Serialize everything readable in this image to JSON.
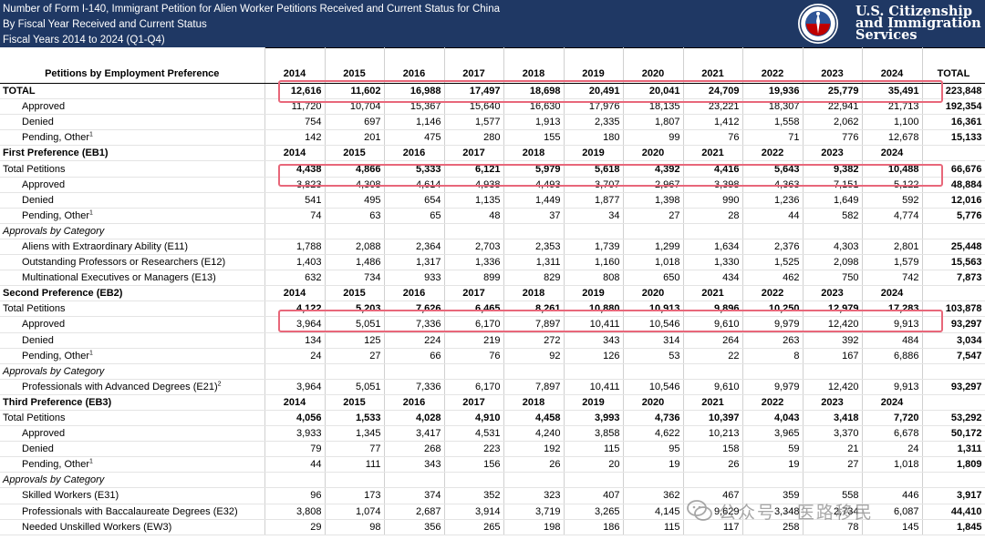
{
  "header": {
    "line1": "Number of Form I-140, Immigrant Petition for Alien Worker Petitions Received and Current Status for China",
    "line2": "By Fiscal Year Received and Current Status",
    "line3": "Fiscal Years 2014 to 2024 (Q1-Q4)",
    "agency_line1": "U.S. Citizenship",
    "agency_line2": "and Immigration",
    "agency_line3": "Services",
    "seal_icon": "uscis-seal-icon"
  },
  "table": {
    "column_header": "Petitions by Employment Preference",
    "years": [
      "2014",
      "2015",
      "2016",
      "2017",
      "2018",
      "2019",
      "2020",
      "2021",
      "2022",
      "2023",
      "2024"
    ],
    "total_header": "TOTAL",
    "total": {
      "label": "TOTAL",
      "values": [
        "12,616",
        "11,602",
        "16,988",
        "17,497",
        "18,698",
        "20,491",
        "20,041",
        "24,709",
        "19,936",
        "25,779",
        "35,491"
      ],
      "total": "223,848",
      "rows": [
        {
          "label": "Approved",
          "values": [
            "11,720",
            "10,704",
            "15,367",
            "15,640",
            "16,630",
            "17,976",
            "18,135",
            "23,221",
            "18,307",
            "22,941",
            "21,713"
          ],
          "total": "192,354"
        },
        {
          "label": "Denied",
          "values": [
            "754",
            "697",
            "1,146",
            "1,577",
            "1,913",
            "2,335",
            "1,807",
            "1,412",
            "1,558",
            "2,062",
            "1,100"
          ],
          "total": "16,361"
        },
        {
          "label": "Pending, Other",
          "sup": "1",
          "values": [
            "142",
            "201",
            "475",
            "280",
            "155",
            "180",
            "99",
            "76",
            "71",
            "776",
            "12,678"
          ],
          "total": "15,133"
        }
      ]
    },
    "eb1": {
      "title": "First Preference (EB1)",
      "total_label": "Total Petitions",
      "total_values": [
        "4,438",
        "4,866",
        "5,333",
        "6,121",
        "5,979",
        "5,618",
        "4,392",
        "4,416",
        "5,643",
        "9,382",
        "10,488"
      ],
      "total": "66,676",
      "rows": [
        {
          "label": "Approved",
          "values": [
            "3,823",
            "4,308",
            "4,614",
            "4,938",
            "4,493",
            "3,707",
            "2,967",
            "3,398",
            "4,363",
            "7,151",
            "5,122"
          ],
          "total": "48,884"
        },
        {
          "label": "Denied",
          "values": [
            "541",
            "495",
            "654",
            "1,135",
            "1,449",
            "1,877",
            "1,398",
            "990",
            "1,236",
            "1,649",
            "592"
          ],
          "total": "12,016"
        },
        {
          "label": "Pending, Other",
          "sup": "1",
          "values": [
            "74",
            "63",
            "65",
            "48",
            "37",
            "34",
            "27",
            "28",
            "44",
            "582",
            "4,774"
          ],
          "total": "5,776"
        }
      ],
      "category_label": "Approvals by Category",
      "categories": [
        {
          "label": "Aliens with Extraordinary Ability (E11)",
          "values": [
            "1,788",
            "2,088",
            "2,364",
            "2,703",
            "2,353",
            "1,739",
            "1,299",
            "1,634",
            "2,376",
            "4,303",
            "2,801"
          ],
          "total": "25,448"
        },
        {
          "label": "Outstanding Professors or Researchers (E12)",
          "values": [
            "1,403",
            "1,486",
            "1,317",
            "1,336",
            "1,311",
            "1,160",
            "1,018",
            "1,330",
            "1,525",
            "2,098",
            "1,579"
          ],
          "total": "15,563"
        },
        {
          "label": "Multinational Executives or Managers (E13)",
          "values": [
            "632",
            "734",
            "933",
            "899",
            "829",
            "808",
            "650",
            "434",
            "462",
            "750",
            "742"
          ],
          "total": "7,873"
        }
      ]
    },
    "eb2": {
      "title": "Second Preference (EB2)",
      "total_label": "Total Petitions",
      "total_values": [
        "4,122",
        "5,203",
        "7,626",
        "6,465",
        "8,261",
        "10,880",
        "10,913",
        "9,896",
        "10,250",
        "12,979",
        "17,283"
      ],
      "total": "103,878",
      "rows": [
        {
          "label": "Approved",
          "values": [
            "3,964",
            "5,051",
            "7,336",
            "6,170",
            "7,897",
            "10,411",
            "10,546",
            "9,610",
            "9,979",
            "12,420",
            "9,913"
          ],
          "total": "93,297"
        },
        {
          "label": "Denied",
          "values": [
            "134",
            "125",
            "224",
            "219",
            "272",
            "343",
            "314",
            "264",
            "263",
            "392",
            "484"
          ],
          "total": "3,034"
        },
        {
          "label": "Pending, Other",
          "sup": "1",
          "values": [
            "24",
            "27",
            "66",
            "76",
            "92",
            "126",
            "53",
            "22",
            "8",
            "167",
            "6,886"
          ],
          "total": "7,547"
        }
      ],
      "category_label": "Approvals by Category",
      "categories": [
        {
          "label": "Professionals with Advanced Degrees (E21)",
          "sup": "2",
          "values": [
            "3,964",
            "5,051",
            "7,336",
            "6,170",
            "7,897",
            "10,411",
            "10,546",
            "9,610",
            "9,979",
            "12,420",
            "9,913"
          ],
          "total": "93,297"
        }
      ]
    },
    "eb3": {
      "title": "Third Preference (EB3)",
      "total_label": "Total Petitions",
      "total_values": [
        "4,056",
        "1,533",
        "4,028",
        "4,910",
        "4,458",
        "3,993",
        "4,736",
        "10,397",
        "4,043",
        "3,418",
        "7,720"
      ],
      "total": "53,292",
      "rows": [
        {
          "label": "Approved",
          "values": [
            "3,933",
            "1,345",
            "3,417",
            "4,531",
            "4,240",
            "3,858",
            "4,622",
            "10,213",
            "3,965",
            "3,370",
            "6,678"
          ],
          "total": "50,172"
        },
        {
          "label": "Denied",
          "values": [
            "79",
            "77",
            "268",
            "223",
            "192",
            "115",
            "95",
            "158",
            "59",
            "21",
            "24"
          ],
          "total": "1,311"
        },
        {
          "label": "Pending, Other",
          "sup": "1",
          "values": [
            "44",
            "111",
            "343",
            "156",
            "26",
            "20",
            "19",
            "26",
            "19",
            "27",
            "1,018"
          ],
          "total": "1,809"
        }
      ],
      "category_label": "Approvals by Category",
      "categories": [
        {
          "label": "Skilled Workers (E31)",
          "values": [
            "96",
            "173",
            "374",
            "352",
            "323",
            "407",
            "362",
            "467",
            "359",
            "558",
            "446"
          ],
          "total": "3,917"
        },
        {
          "label": "Professionals with Baccalaureate Degrees (E32)",
          "values": [
            "3,808",
            "1,074",
            "2,687",
            "3,914",
            "3,719",
            "3,265",
            "4,145",
            "9,629",
            "3,348",
            "2,734",
            "6,087"
          ],
          "total": "44,410"
        },
        {
          "label": "Needed Unskilled Workers (EW3)",
          "values": [
            "29",
            "98",
            "356",
            "265",
            "198",
            "186",
            "115",
            "117",
            "258",
            "78",
            "145"
          ],
          "total": "1,845"
        }
      ]
    }
  },
  "watermark": {
    "text": "公众号 · 医路移民",
    "icon": "wechat-icon"
  },
  "colors": {
    "header_bg": "#1f3864",
    "highlight": "#e8677a"
  }
}
